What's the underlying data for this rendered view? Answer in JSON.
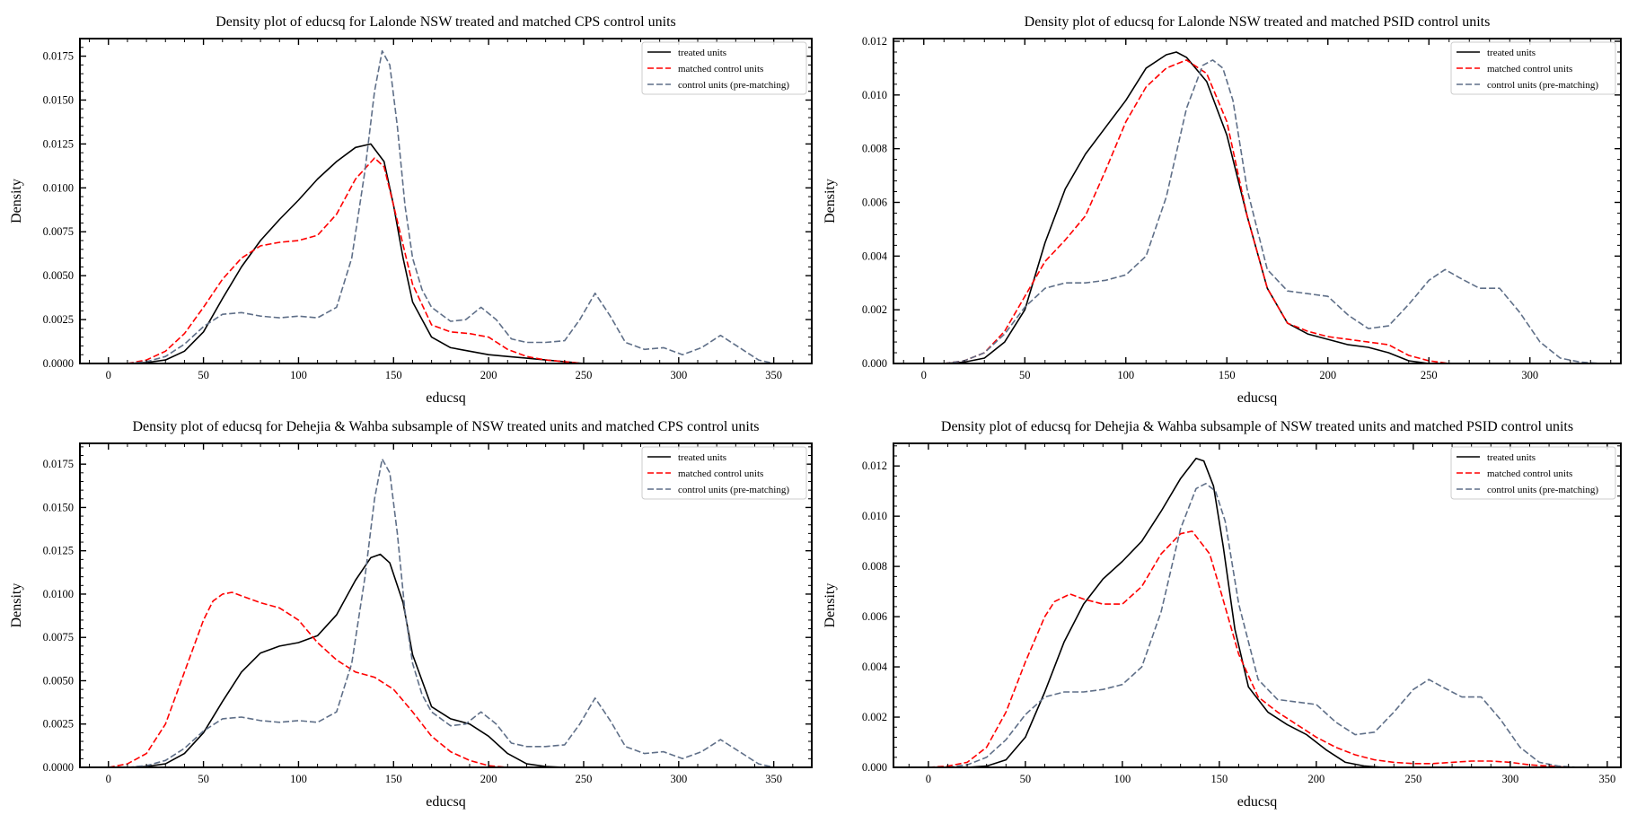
{
  "colors": {
    "treated": "#000000",
    "matched": "#ff0000",
    "control": "#5f6f88",
    "legend_border": "#cccccc"
  },
  "legend": {
    "treated": "treated units",
    "matched": "matched control units",
    "control": "control units (pre-matching)"
  },
  "chart_data": [
    {
      "type": "line",
      "title": "Density plot of  educsq for Lalonde NSW treated and matched CPS control units",
      "xlabel": "educsq",
      "ylabel": "Density",
      "xlim": [
        -15,
        370
      ],
      "ylim": [
        0,
        0.0185
      ],
      "xticks": [
        0,
        50,
        100,
        150,
        200,
        250,
        300,
        350
      ],
      "yticks": [
        0.0,
        0.0025,
        0.005,
        0.0075,
        0.01,
        0.0125,
        0.015,
        0.0175
      ],
      "ytick_labels": [
        "0.0000",
        "0.0025",
        "0.0050",
        "0.0075",
        "0.0100",
        "0.0125",
        "0.0150",
        "0.0175"
      ],
      "grid": false,
      "legend_position": "top-right",
      "series": [
        {
          "key": "treated",
          "name": "treated units",
          "style": "solid",
          "x": [
            10,
            20,
            30,
            40,
            50,
            60,
            70,
            80,
            90,
            100,
            110,
            120,
            130,
            138,
            145,
            150,
            155,
            160,
            170,
            180,
            190,
            200,
            210,
            220,
            230,
            240,
            250
          ],
          "y": [
            0.0,
            5e-05,
            0.0002,
            0.0007,
            0.0018,
            0.0037,
            0.0055,
            0.007,
            0.0082,
            0.0093,
            0.0105,
            0.0115,
            0.0123,
            0.0125,
            0.0115,
            0.009,
            0.006,
            0.0035,
            0.0015,
            0.0009,
            0.0007,
            0.0005,
            0.0004,
            0.0003,
            0.0002,
            0.0001,
            0.0
          ]
        },
        {
          "key": "matched",
          "name": "matched control units",
          "style": "dashed",
          "x": [
            10,
            20,
            30,
            40,
            50,
            60,
            70,
            80,
            90,
            100,
            110,
            120,
            130,
            140,
            145,
            150,
            160,
            170,
            180,
            190,
            200,
            210,
            220,
            230,
            240,
            250
          ],
          "y": [
            0.0,
            0.0002,
            0.0007,
            0.0017,
            0.0032,
            0.0048,
            0.006,
            0.0067,
            0.0069,
            0.007,
            0.0073,
            0.0085,
            0.0105,
            0.0117,
            0.0112,
            0.009,
            0.0045,
            0.0022,
            0.0018,
            0.0017,
            0.0015,
            0.0008,
            0.0004,
            0.0002,
            0.0001,
            0.0
          ]
        },
        {
          "key": "control",
          "name": "control units (pre-matching)",
          "style": "dashed",
          "x": [
            10,
            20,
            30,
            40,
            50,
            60,
            70,
            80,
            90,
            100,
            110,
            120,
            128,
            135,
            140,
            144,
            148,
            152,
            156,
            160,
            165,
            170,
            180,
            188,
            196,
            204,
            212,
            220,
            230,
            240,
            248,
            256,
            264,
            272,
            282,
            292,
            302,
            312,
            322,
            332,
            342,
            350
          ],
          "y": [
            0.0,
            0.0001,
            0.0004,
            0.0011,
            0.0021,
            0.0028,
            0.0029,
            0.0027,
            0.0026,
            0.0027,
            0.0026,
            0.0032,
            0.006,
            0.011,
            0.0155,
            0.0178,
            0.017,
            0.0135,
            0.009,
            0.006,
            0.0042,
            0.0032,
            0.0024,
            0.0025,
            0.0032,
            0.0025,
            0.0014,
            0.0012,
            0.0012,
            0.0013,
            0.0025,
            0.004,
            0.0027,
            0.0012,
            0.0008,
            0.0009,
            0.0005,
            0.0009,
            0.0016,
            0.0009,
            0.0002,
            0.0
          ]
        }
      ]
    },
    {
      "type": "line",
      "title": "Density plot of  educsq for Lalonde NSW treated and matched PSID control units",
      "xlabel": "educsq",
      "ylabel": "Density",
      "xlim": [
        -15,
        345
      ],
      "ylim": [
        0,
        0.0121
      ],
      "xticks": [
        0,
        50,
        100,
        150,
        200,
        250,
        300
      ],
      "yticks": [
        0.0,
        0.002,
        0.004,
        0.006,
        0.008,
        0.01,
        0.012
      ],
      "ytick_labels": [
        "0.000",
        "0.002",
        "0.004",
        "0.006",
        "0.008",
        "0.010",
        "0.012"
      ],
      "grid": false,
      "legend_position": "top-right",
      "series": [
        {
          "key": "treated",
          "name": "treated units",
          "style": "solid",
          "x": [
            10,
            20,
            30,
            40,
            50,
            60,
            70,
            80,
            90,
            100,
            110,
            120,
            125,
            130,
            140,
            150,
            160,
            170,
            180,
            190,
            200,
            210,
            220,
            230,
            240,
            250
          ],
          "y": [
            0.0,
            5e-05,
            0.0002,
            0.0008,
            0.002,
            0.0045,
            0.0065,
            0.0078,
            0.0088,
            0.0098,
            0.011,
            0.0115,
            0.0116,
            0.0114,
            0.0105,
            0.0085,
            0.0055,
            0.0028,
            0.0015,
            0.0011,
            0.0009,
            0.0007,
            0.0006,
            0.0004,
            0.0001,
            0.0
          ]
        },
        {
          "key": "matched",
          "name": "matched control units",
          "style": "dashed",
          "x": [
            10,
            20,
            30,
            40,
            50,
            60,
            70,
            80,
            90,
            100,
            110,
            120,
            130,
            140,
            150,
            160,
            170,
            180,
            190,
            200,
            210,
            220,
            230,
            240,
            250,
            260
          ],
          "y": [
            0.0,
            0.0001,
            0.0004,
            0.0012,
            0.0025,
            0.0038,
            0.0046,
            0.0055,
            0.0072,
            0.009,
            0.0103,
            0.011,
            0.0113,
            0.0108,
            0.009,
            0.0055,
            0.0028,
            0.0015,
            0.0012,
            0.001,
            0.0009,
            0.0008,
            0.0007,
            0.0003,
            0.0001,
            0.0
          ]
        },
        {
          "key": "control",
          "name": "control units (pre-matching)",
          "style": "dashed",
          "x": [
            10,
            20,
            30,
            40,
            50,
            60,
            70,
            80,
            90,
            100,
            110,
            120,
            130,
            138,
            143,
            148,
            153,
            160,
            170,
            180,
            190,
            200,
            210,
            220,
            230,
            240,
            250,
            258,
            265,
            275,
            285,
            295,
            305,
            315,
            325,
            335
          ],
          "y": [
            0.0,
            0.0001,
            0.0004,
            0.0011,
            0.0021,
            0.0028,
            0.003,
            0.003,
            0.0031,
            0.0033,
            0.004,
            0.0062,
            0.0095,
            0.0111,
            0.0113,
            0.011,
            0.0098,
            0.0065,
            0.0035,
            0.0027,
            0.0026,
            0.0025,
            0.0018,
            0.0013,
            0.0014,
            0.0022,
            0.0031,
            0.0035,
            0.0032,
            0.0028,
            0.0028,
            0.0019,
            0.0008,
            0.0002,
            5e-05,
            0.0
          ]
        }
      ]
    },
    {
      "type": "line",
      "title": "Density plot of educsq for Dehejia & Wahba subsample of NSW treated units and matched CPS control units",
      "xlabel": "educsq",
      "ylabel": "Density",
      "xlim": [
        -15,
        370
      ],
      "ylim": [
        0,
        0.0187
      ],
      "xticks": [
        0,
        50,
        100,
        150,
        200,
        250,
        300,
        350
      ],
      "yticks": [
        0.0,
        0.0025,
        0.005,
        0.0075,
        0.01,
        0.0125,
        0.015,
        0.0175
      ],
      "ytick_labels": [
        "0.0000",
        "0.0025",
        "0.0050",
        "0.0075",
        "0.0100",
        "0.0125",
        "0.0150",
        "0.0175"
      ],
      "grid": false,
      "legend_position": "top-right",
      "series": [
        {
          "key": "treated",
          "name": "treated units",
          "style": "solid",
          "x": [
            10,
            20,
            30,
            40,
            50,
            60,
            70,
            80,
            90,
            100,
            110,
            120,
            130,
            138,
            143,
            148,
            155,
            160,
            170,
            180,
            190,
            200,
            210,
            220,
            230,
            240
          ],
          "y": [
            0.0,
            5e-05,
            0.0002,
            0.0008,
            0.002,
            0.0038,
            0.0055,
            0.0066,
            0.007,
            0.0072,
            0.0076,
            0.0088,
            0.0108,
            0.0121,
            0.0123,
            0.0118,
            0.0095,
            0.0065,
            0.0035,
            0.0028,
            0.0025,
            0.0018,
            0.0008,
            0.0002,
            5e-05,
            0.0
          ]
        },
        {
          "key": "matched",
          "name": "matched control units",
          "style": "dashed",
          "x": [
            0,
            10,
            20,
            30,
            40,
            50,
            55,
            60,
            65,
            70,
            80,
            90,
            100,
            110,
            120,
            130,
            140,
            150,
            160,
            170,
            180,
            190,
            200,
            210
          ],
          "y": [
            0.0,
            0.0002,
            0.0008,
            0.0025,
            0.0055,
            0.0085,
            0.0096,
            0.01,
            0.0101,
            0.0099,
            0.0095,
            0.0092,
            0.0085,
            0.0072,
            0.0062,
            0.0055,
            0.0052,
            0.0045,
            0.0032,
            0.0018,
            0.0009,
            0.0004,
            0.0001,
            0.0
          ]
        },
        {
          "key": "control",
          "name": "control units (pre-matching)",
          "style": "dashed",
          "x": [
            10,
            20,
            30,
            40,
            50,
            60,
            70,
            80,
            90,
            100,
            110,
            120,
            128,
            135,
            140,
            144,
            148,
            152,
            156,
            160,
            165,
            170,
            180,
            188,
            196,
            204,
            212,
            220,
            230,
            240,
            248,
            256,
            264,
            272,
            282,
            292,
            302,
            312,
            322,
            332,
            342,
            350
          ],
          "y": [
            0.0,
            0.0001,
            0.0004,
            0.0011,
            0.0021,
            0.0028,
            0.0029,
            0.0027,
            0.0026,
            0.0027,
            0.0026,
            0.0032,
            0.006,
            0.011,
            0.0155,
            0.0178,
            0.017,
            0.0135,
            0.009,
            0.006,
            0.0042,
            0.0032,
            0.0024,
            0.0025,
            0.0032,
            0.0025,
            0.0014,
            0.0012,
            0.0012,
            0.0013,
            0.0025,
            0.004,
            0.0027,
            0.0012,
            0.0008,
            0.0009,
            0.0005,
            0.0009,
            0.0016,
            0.0009,
            0.0002,
            0.0
          ]
        }
      ]
    },
    {
      "type": "line",
      "title": "Density plot of educsq for Dehejia & Wahba subsample of NSW treated units and matched PSID control units",
      "xlabel": "educsq",
      "ylabel": "Density",
      "xlim": [
        -18,
        357
      ],
      "ylim": [
        0,
        0.0129
      ],
      "xticks": [
        0,
        50,
        100,
        150,
        200,
        250,
        300,
        350
      ],
      "yticks": [
        0.0,
        0.002,
        0.004,
        0.006,
        0.008,
        0.01,
        0.012
      ],
      "ytick_labels": [
        "0.000",
        "0.002",
        "0.004",
        "0.006",
        "0.008",
        "0.010",
        "0.012"
      ],
      "grid": false,
      "legend_position": "top-right",
      "series": [
        {
          "key": "treated",
          "name": "treated units",
          "style": "solid",
          "x": [
            20,
            30,
            40,
            50,
            60,
            70,
            80,
            90,
            100,
            110,
            120,
            130,
            138,
            142,
            147,
            152,
            158,
            165,
            175,
            185,
            195,
            205,
            215,
            225,
            235
          ],
          "y": [
            0.0,
            5e-05,
            0.0003,
            0.0012,
            0.003,
            0.005,
            0.0065,
            0.0075,
            0.0082,
            0.009,
            0.0102,
            0.0115,
            0.0123,
            0.0122,
            0.0112,
            0.0088,
            0.0055,
            0.0032,
            0.0022,
            0.0017,
            0.0013,
            0.0007,
            0.0002,
            5e-05,
            0.0
          ]
        },
        {
          "key": "matched",
          "name": "matched control units",
          "style": "dashed",
          "x": [
            0,
            10,
            20,
            30,
            40,
            50,
            60,
            65,
            73,
            80,
            90,
            100,
            110,
            120,
            130,
            136,
            145,
            150,
            160,
            170,
            180,
            190,
            200,
            210,
            220,
            230,
            240,
            250,
            260,
            270,
            280,
            290,
            300,
            310,
            320,
            330
          ],
          "y": [
            0.0,
            5e-05,
            0.0002,
            0.0008,
            0.0022,
            0.0042,
            0.006,
            0.0066,
            0.0069,
            0.0067,
            0.0065,
            0.0065,
            0.0072,
            0.0085,
            0.0093,
            0.0094,
            0.0085,
            0.0072,
            0.0045,
            0.0028,
            0.0022,
            0.0017,
            0.0012,
            0.0008,
            0.0005,
            0.0003,
            0.0002,
            0.00015,
            0.00015,
            0.0002,
            0.00025,
            0.00025,
            0.0002,
            0.0001,
            5e-05,
            0.0
          ]
        },
        {
          "key": "control",
          "name": "control units (pre-matching)",
          "style": "dashed",
          "x": [
            10,
            20,
            30,
            40,
            50,
            60,
            70,
            80,
            90,
            100,
            110,
            120,
            130,
            138,
            143,
            148,
            153,
            160,
            170,
            180,
            190,
            200,
            210,
            220,
            230,
            240,
            250,
            258,
            265,
            275,
            285,
            295,
            305,
            315,
            325,
            335
          ],
          "y": [
            0.0,
            0.0001,
            0.0004,
            0.0011,
            0.0021,
            0.0028,
            0.003,
            0.003,
            0.0031,
            0.0033,
            0.004,
            0.0062,
            0.0095,
            0.0111,
            0.0113,
            0.011,
            0.0098,
            0.0065,
            0.0035,
            0.0027,
            0.0026,
            0.0025,
            0.0018,
            0.0013,
            0.0014,
            0.0022,
            0.0031,
            0.0035,
            0.0032,
            0.0028,
            0.0028,
            0.0019,
            0.0008,
            0.0002,
            5e-05,
            0.0
          ]
        }
      ]
    }
  ]
}
